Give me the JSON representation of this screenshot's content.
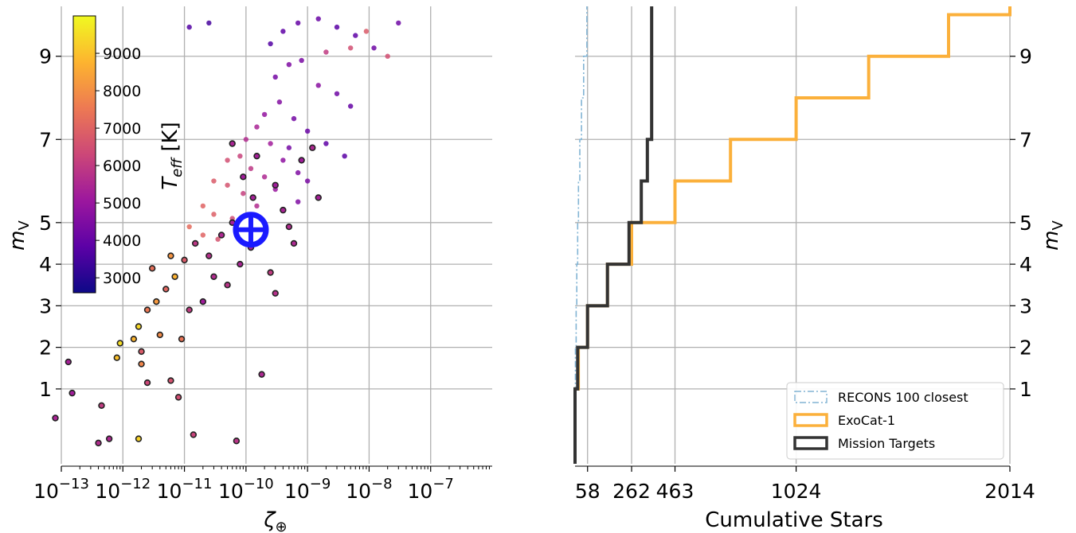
{
  "chart_data": [
    {
      "type": "scatter",
      "x_scale": "log",
      "xlabel": "ζ⊕",
      "ylabel": "m_V",
      "xlim": [
        1e-13,
        1e-06
      ],
      "ylim": [
        -0.8,
        10.2
      ],
      "x_tick_labels": [
        {
          "value": 1e-13,
          "base": "10",
          "exp": "−13"
        },
        {
          "value": 1e-12,
          "base": "10",
          "exp": "−12"
        },
        {
          "value": 1e-11,
          "base": "10",
          "exp": "−11"
        },
        {
          "value": 1e-10,
          "base": "10",
          "exp": "−10"
        },
        {
          "value": 1e-09,
          "base": "10",
          "exp": "−9"
        },
        {
          "value": 1e-08,
          "base": "10",
          "exp": "−8"
        },
        {
          "value": 1e-07,
          "base": "10",
          "exp": "−7"
        }
      ],
      "y_ticks": [
        1,
        2,
        3,
        4,
        5,
        7,
        9
      ],
      "y_tick_labels": [
        "1",
        "2",
        "3",
        "4",
        "5",
        "7",
        "9"
      ],
      "grid": true,
      "colorbar": {
        "label": "T_eff [K]",
        "label_main": "T",
        "label_sub": "eff",
        "label_unit": " [K]",
        "range": [
          2600,
          10000
        ],
        "ticks": [
          3000,
          4000,
          5000,
          6000,
          7000,
          8000,
          9000
        ],
        "tick_labels": [
          "3000",
          "4000",
          "5000",
          "6000",
          "7000",
          "8000",
          "9000"
        ],
        "colors": [
          "#0d0887",
          "#5c01a6",
          "#9c179e",
          "#cc4778",
          "#ed7953",
          "#fdb42f",
          "#f0f921"
        ]
      },
      "points_background": [
        {
          "x": 2.5e-10,
          "y": 9.3,
          "teff": 3700
        },
        {
          "x": 4e-10,
          "y": 9.6,
          "teff": 3900
        },
        {
          "x": 7e-10,
          "y": 9.8,
          "teff": 4000
        },
        {
          "x": 1.5e-09,
          "y": 9.9,
          "teff": 4100
        },
        {
          "x": 3e-09,
          "y": 9.7,
          "teff": 3800
        },
        {
          "x": 6e-09,
          "y": 9.5,
          "teff": 3900
        },
        {
          "x": 1.2e-08,
          "y": 9.2,
          "teff": 4200
        },
        {
          "x": 2e-09,
          "y": 9.1,
          "teff": 6000
        },
        {
          "x": 5e-09,
          "y": 9.2,
          "teff": 6500
        },
        {
          "x": 9e-09,
          "y": 9.6,
          "teff": 6800
        },
        {
          "x": 3e-08,
          "y": 9.8,
          "teff": 4200
        },
        {
          "x": 2e-08,
          "y": 9.0,
          "teff": 6500
        },
        {
          "x": 1.2e-11,
          "y": 9.7,
          "teff": 3700
        },
        {
          "x": 2.5e-11,
          "y": 9.8,
          "teff": 3500
        },
        {
          "x": 3e-10,
          "y": 8.5,
          "teff": 4300
        },
        {
          "x": 5e-10,
          "y": 8.8,
          "teff": 4500
        },
        {
          "x": 8e-10,
          "y": 8.9,
          "teff": 4400
        },
        {
          "x": 1.5e-09,
          "y": 8.3,
          "teff": 4700
        },
        {
          "x": 3e-09,
          "y": 8.1,
          "teff": 4200
        },
        {
          "x": 5e-09,
          "y": 7.8,
          "teff": 4000
        },
        {
          "x": 2e-10,
          "y": 7.6,
          "teff": 4900
        },
        {
          "x": 3.5e-10,
          "y": 7.9,
          "teff": 4600
        },
        {
          "x": 6e-10,
          "y": 7.5,
          "teff": 4300
        },
        {
          "x": 1e-09,
          "y": 7.2,
          "teff": 4100
        },
        {
          "x": 2e-09,
          "y": 6.9,
          "teff": 3900
        },
        {
          "x": 4e-09,
          "y": 6.6,
          "teff": 3800
        },
        {
          "x": 1e-10,
          "y": 7.0,
          "teff": 5600
        },
        {
          "x": 1.5e-10,
          "y": 7.3,
          "teff": 5400
        },
        {
          "x": 2.5e-10,
          "y": 6.9,
          "teff": 5200
        },
        {
          "x": 4e-10,
          "y": 6.5,
          "teff": 4800
        },
        {
          "x": 7e-10,
          "y": 6.2,
          "teff": 4500
        },
        {
          "x": 5e-11,
          "y": 6.5,
          "teff": 6500
        },
        {
          "x": 8e-11,
          "y": 6.6,
          "teff": 6200
        },
        {
          "x": 1.2e-10,
          "y": 6.3,
          "teff": 5900
        },
        {
          "x": 2e-10,
          "y": 6.1,
          "teff": 5500
        },
        {
          "x": 3e-10,
          "y": 5.8,
          "teff": 5000
        },
        {
          "x": 3e-11,
          "y": 6.0,
          "teff": 6800
        },
        {
          "x": 5e-11,
          "y": 5.9,
          "teff": 6600
        },
        {
          "x": 9e-11,
          "y": 5.7,
          "teff": 6100
        },
        {
          "x": 1.5e-10,
          "y": 5.4,
          "teff": 5600
        },
        {
          "x": 2e-11,
          "y": 5.4,
          "teff": 7000
        },
        {
          "x": 3e-11,
          "y": 5.2,
          "teff": 6900
        },
        {
          "x": 6e-11,
          "y": 5.1,
          "teff": 6400
        },
        {
          "x": 1e-10,
          "y": 5.0,
          "teff": 5900
        },
        {
          "x": 1.2e-11,
          "y": 4.9,
          "teff": 7200
        },
        {
          "x": 2e-11,
          "y": 4.7,
          "teff": 7000
        },
        {
          "x": 3.5e-11,
          "y": 4.6,
          "teff": 6600
        },
        {
          "x": 7e-10,
          "y": 5.5,
          "teff": 4500
        },
        {
          "x": 1e-09,
          "y": 6.0,
          "teff": 4400
        },
        {
          "x": 5e-10,
          "y": 6.8,
          "teff": 4300
        }
      ],
      "points_targets": [
        {
          "x": 8e-14,
          "y": 0.3,
          "teff": 5400
        },
        {
          "x": 1.5e-13,
          "y": 0.9,
          "teff": 5200
        },
        {
          "x": 1.3e-13,
          "y": 1.65,
          "teff": 5300
        },
        {
          "x": 4e-13,
          "y": -0.3,
          "teff": 5600
        },
        {
          "x": 6e-13,
          "y": -0.2,
          "teff": 5500
        },
        {
          "x": 1.8e-12,
          "y": -0.2,
          "teff": 9300
        },
        {
          "x": 4.5e-13,
          "y": 0.6,
          "teff": 6000
        },
        {
          "x": 1.4e-11,
          "y": -0.1,
          "teff": 6200
        },
        {
          "x": 7e-11,
          "y": -0.25,
          "teff": 5800
        },
        {
          "x": 8e-12,
          "y": 0.8,
          "teff": 6500
        },
        {
          "x": 2.5e-12,
          "y": 1.15,
          "teff": 6300
        },
        {
          "x": 6e-12,
          "y": 1.2,
          "teff": 6600
        },
        {
          "x": 2e-12,
          "y": 1.6,
          "teff": 7800
        },
        {
          "x": 8e-13,
          "y": 1.75,
          "teff": 9000
        },
        {
          "x": 9e-13,
          "y": 2.1,
          "teff": 9500
        },
        {
          "x": 1.5e-12,
          "y": 2.2,
          "teff": 8800
        },
        {
          "x": 1.8e-12,
          "y": 2.5,
          "teff": 9400
        },
        {
          "x": 2.5e-12,
          "y": 2.9,
          "teff": 7500
        },
        {
          "x": 3.5e-12,
          "y": 3.1,
          "teff": 8200
        },
        {
          "x": 5e-12,
          "y": 3.4,
          "teff": 7100
        },
        {
          "x": 7e-12,
          "y": 3.7,
          "teff": 8700
        },
        {
          "x": 4e-12,
          "y": 2.3,
          "teff": 7900
        },
        {
          "x": 9e-12,
          "y": 2.2,
          "teff": 7400
        },
        {
          "x": 1.2e-11,
          "y": 2.9,
          "teff": 6000
        },
        {
          "x": 2e-11,
          "y": 3.1,
          "teff": 5200
        },
        {
          "x": 1e-11,
          "y": 4.1,
          "teff": 6800
        },
        {
          "x": 1.5e-11,
          "y": 4.5,
          "teff": 5900
        },
        {
          "x": 2.5e-11,
          "y": 4.2,
          "teff": 5700
        },
        {
          "x": 4e-11,
          "y": 4.7,
          "teff": 5500
        },
        {
          "x": 6e-11,
          "y": 5.0,
          "teff": 5300
        },
        {
          "x": 3e-11,
          "y": 3.7,
          "teff": 5600
        },
        {
          "x": 5e-11,
          "y": 3.5,
          "teff": 5800
        },
        {
          "x": 8e-11,
          "y": 4.0,
          "teff": 5400
        },
        {
          "x": 1.2e-10,
          "y": 4.4,
          "teff": 5300
        },
        {
          "x": 1.8e-10,
          "y": 4.6,
          "teff": 5500
        },
        {
          "x": 2.5e-10,
          "y": 3.8,
          "teff": 6000
        },
        {
          "x": 1.3e-10,
          "y": 5.6,
          "teff": 5300
        },
        {
          "x": 9e-11,
          "y": 6.1,
          "teff": 5200
        },
        {
          "x": 1.5e-10,
          "y": 6.6,
          "teff": 5300
        },
        {
          "x": 6e-11,
          "y": 6.9,
          "teff": 5400
        },
        {
          "x": 3e-10,
          "y": 5.9,
          "teff": 5200
        },
        {
          "x": 4e-10,
          "y": 5.3,
          "teff": 5400
        },
        {
          "x": 5e-10,
          "y": 4.9,
          "teff": 5600
        },
        {
          "x": 6e-10,
          "y": 4.5,
          "teff": 5500
        },
        {
          "x": 8e-10,
          "y": 6.5,
          "teff": 5200
        },
        {
          "x": 1.2e-09,
          "y": 6.8,
          "teff": 5500
        },
        {
          "x": 1.5e-09,
          "y": 5.6,
          "teff": 5300
        },
        {
          "x": 3e-10,
          "y": 3.3,
          "teff": 5700
        },
        {
          "x": 1.8e-10,
          "y": 1.35,
          "teff": 5500
        },
        {
          "x": 3e-12,
          "y": 3.9,
          "teff": 7300
        },
        {
          "x": 6e-12,
          "y": 4.2,
          "teff": 8100
        },
        {
          "x": 2e-12,
          "y": 1.9,
          "teff": 6800
        }
      ],
      "sun_marker": {
        "x": 1.2e-10,
        "y": 4.83,
        "label": "⊕"
      }
    },
    {
      "type": "line",
      "xlabel": "Cumulative Stars",
      "ylabel": "m_V",
      "y_axis_side": "right",
      "xlim": [
        20,
        2014
      ],
      "ylim": [
        -0.8,
        10.2
      ],
      "x_ticks": [
        58,
        262,
        463,
        1024,
        2014
      ],
      "x_tick_labels": [
        "58",
        "262",
        "463",
        "1024",
        "2014"
      ],
      "y_ticks": [
        1,
        2,
        3,
        4,
        5,
        7,
        9
      ],
      "y_tick_labels": [
        "1",
        "2",
        "3",
        "4",
        "5",
        "7",
        "9"
      ],
      "grid": true,
      "legend": {
        "placement": "lower right",
        "entries": [
          "RECONS 100 closest",
          "ExoCat-1",
          "Mission Targets"
        ]
      },
      "series": [
        {
          "name": "RECONS 100 closest",
          "color": "#82b4d4",
          "style": "dashdot",
          "steps": [
            [
              0,
              0
            ],
            [
              0,
              1
            ],
            [
              2,
              1
            ],
            [
              2,
              2
            ],
            [
              5,
              2
            ],
            [
              5,
              3
            ],
            [
              8,
              3
            ],
            [
              8,
              4
            ],
            [
              12,
              4
            ],
            [
              12,
              5
            ],
            [
              16,
              5
            ],
            [
              16,
              6
            ],
            [
              22,
              6
            ],
            [
              22,
              7
            ],
            [
              30,
              7
            ],
            [
              30,
              8
            ],
            [
              40,
              8
            ],
            [
              40,
              9
            ],
            [
              55,
              9
            ],
            [
              55,
              10.2
            ]
          ]
        },
        {
          "name": "ExoCat-1",
          "color": "#fbb03b",
          "style": "solid",
          "steps": [
            [
              0,
              -0.8
            ],
            [
              0,
              1
            ],
            [
              15,
              1
            ],
            [
              15,
              2
            ],
            [
              58,
              2
            ],
            [
              58,
              3
            ],
            [
              150,
              3
            ],
            [
              150,
              4
            ],
            [
              262,
              4
            ],
            [
              262,
              5
            ],
            [
              463,
              5
            ],
            [
              463,
              6
            ],
            [
              720,
              6
            ],
            [
              720,
              7
            ],
            [
              1024,
              7
            ],
            [
              1024,
              8
            ],
            [
              1360,
              8
            ],
            [
              1360,
              9
            ],
            [
              1730,
              9
            ],
            [
              1730,
              10
            ],
            [
              2014,
              10
            ],
            [
              2014,
              10.2
            ]
          ]
        },
        {
          "name": "Mission Targets",
          "color": "#333333",
          "style": "solid",
          "steps": [
            [
              0,
              -0.8
            ],
            [
              0,
              1
            ],
            [
              12,
              1
            ],
            [
              12,
              2
            ],
            [
              58,
              2
            ],
            [
              58,
              3
            ],
            [
              150,
              3
            ],
            [
              150,
              4
            ],
            [
              250,
              4
            ],
            [
              250,
              5
            ],
            [
              307,
              5
            ],
            [
              307,
              6
            ],
            [
              335,
              6
            ],
            [
              335,
              7
            ],
            [
              355,
              7
            ],
            [
              355,
              10.2
            ]
          ]
        }
      ]
    }
  ]
}
